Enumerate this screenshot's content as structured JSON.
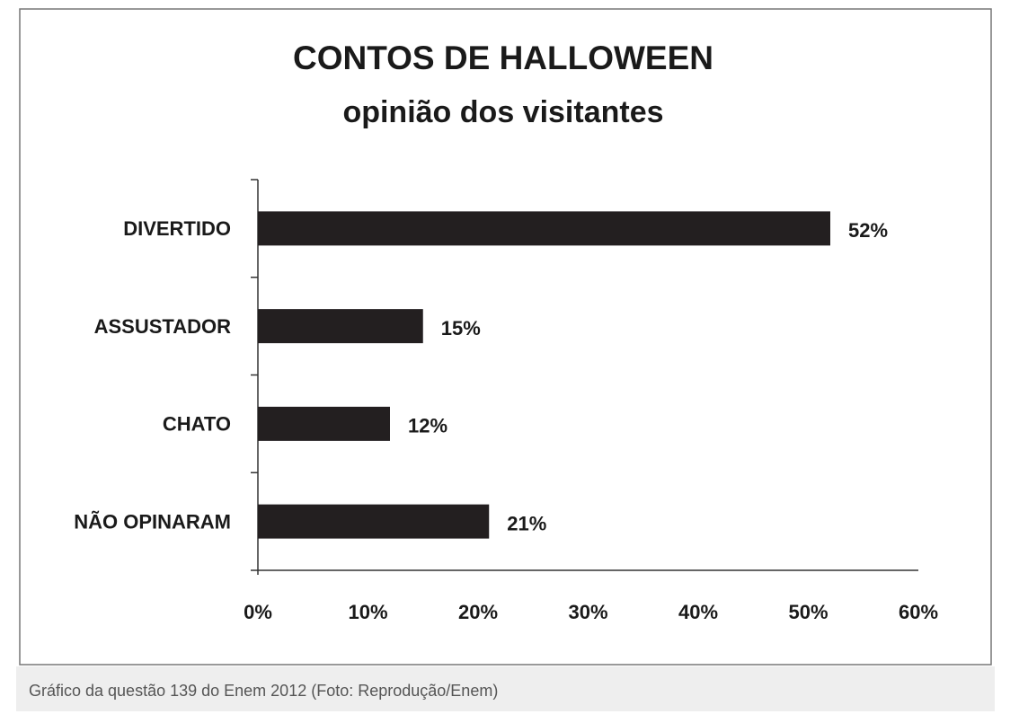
{
  "chart_data": {
    "type": "hbar",
    "title": "CONTOS DE HALLOWEEN",
    "subtitle": "opinião dos visitantes",
    "categories": [
      "DIVERTIDO",
      "ASSUSTADOR",
      "CHATO",
      "NÃO OPINARAM"
    ],
    "values": [
      52,
      15,
      12,
      21
    ],
    "value_labels": [
      "52%",
      "15%",
      "12%",
      "21%"
    ],
    "color": "#231f20",
    "xlim": [
      0,
      60
    ],
    "xticks": [
      {
        "value": 0,
        "label": "0%"
      },
      {
        "value": 10,
        "label": "10%"
      },
      {
        "value": 20,
        "label": "20%"
      },
      {
        "value": 30,
        "label": "30%"
      },
      {
        "value": 40,
        "label": "40%"
      },
      {
        "value": 50,
        "label": "50%"
      },
      {
        "value": 60,
        "label": "60%"
      }
    ],
    "grid": false
  },
  "caption": "Gráfico da questão 139 do Enem 2012 (Foto: Reprodução/Enem)"
}
